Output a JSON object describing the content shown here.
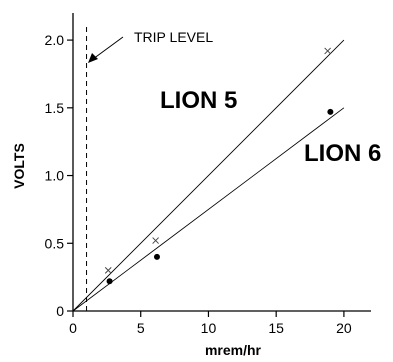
{
  "chart_data": {
    "type": "scatter",
    "xlabel": "mrem/hr",
    "ylabel": "VOLTS",
    "xlim": [
      0,
      22
    ],
    "ylim": [
      0,
      2.2
    ],
    "x_ticks": [
      {
        "value": 0,
        "label": "0"
      },
      {
        "value": 5,
        "label": "5"
      },
      {
        "value": 10,
        "label": "10"
      },
      {
        "value": 15,
        "label": "15"
      },
      {
        "value": 20,
        "label": "20"
      }
    ],
    "y_ticks": [
      {
        "value": 0,
        "label": "0"
      },
      {
        "value": 0.5,
        "label": "0.5"
      },
      {
        "value": 1.0,
        "label": "1.0"
      },
      {
        "value": 1.5,
        "label": "1.5"
      },
      {
        "value": 2.0,
        "label": "2.0"
      }
    ],
    "grid": false,
    "series": [
      {
        "name": "LION 5",
        "marker": "x",
        "points": [
          {
            "x": 2.6,
            "y": 0.3
          },
          {
            "x": 6.1,
            "y": 0.52
          },
          {
            "x": 18.8,
            "y": 1.92
          }
        ],
        "fit_line": [
          [
            0,
            0
          ],
          [
            20,
            2.0
          ]
        ]
      },
      {
        "name": "LION 6",
        "marker": "dot",
        "points": [
          {
            "x": 2.7,
            "y": 0.22
          },
          {
            "x": 6.2,
            "y": 0.4
          },
          {
            "x": 19.0,
            "y": 1.47
          }
        ],
        "fit_line": [
          [
            0,
            0
          ],
          [
            20,
            1.5
          ]
        ]
      }
    ],
    "annotations": [
      {
        "text": "TRIP LEVEL",
        "x_value": 1.0
      }
    ]
  }
}
